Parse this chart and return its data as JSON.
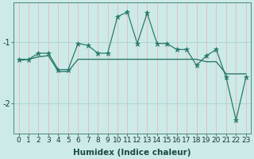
{
  "xlabel": "Humidex (Indice chaleur)",
  "x": [
    0,
    1,
    2,
    3,
    4,
    5,
    6,
    7,
    8,
    9,
    10,
    11,
    12,
    13,
    14,
    15,
    16,
    17,
    18,
    19,
    20,
    21,
    22,
    23
  ],
  "y_jagged": [
    -1.28,
    -1.28,
    -1.18,
    -1.18,
    -1.45,
    -1.45,
    -1.02,
    -1.05,
    -1.18,
    -1.18,
    -0.58,
    -0.5,
    -1.02,
    -0.52,
    -1.02,
    -1.02,
    -1.12,
    -1.12,
    -1.38,
    -1.22,
    -1.12,
    -1.58,
    -2.28,
    -1.58
  ],
  "y_smooth": [
    -1.3,
    -1.28,
    -1.24,
    -1.22,
    -1.48,
    -1.48,
    -1.28,
    -1.28,
    -1.28,
    -1.28,
    -1.28,
    -1.28,
    -1.28,
    -1.28,
    -1.28,
    -1.28,
    -1.28,
    -1.28,
    -1.28,
    -1.32,
    -1.32,
    -1.52,
    -1.52,
    -1.52
  ],
  "line_color": "#2a7a6a",
  "bg_color": "#cceae8",
  "grid_color_v": "#e8b8b8",
  "grid_color_h": "#a8d4d0",
  "marker": "*",
  "ylim": [
    -2.5,
    -0.35
  ],
  "xlim": [
    -0.5,
    23.5
  ],
  "yticks": [
    -2,
    -1
  ],
  "xticks": [
    0,
    1,
    2,
    3,
    4,
    5,
    6,
    7,
    8,
    9,
    10,
    11,
    12,
    13,
    14,
    15,
    16,
    17,
    18,
    19,
    20,
    21,
    22,
    23
  ],
  "label_fontsize": 6.5,
  "xlabel_fontsize": 7.5
}
